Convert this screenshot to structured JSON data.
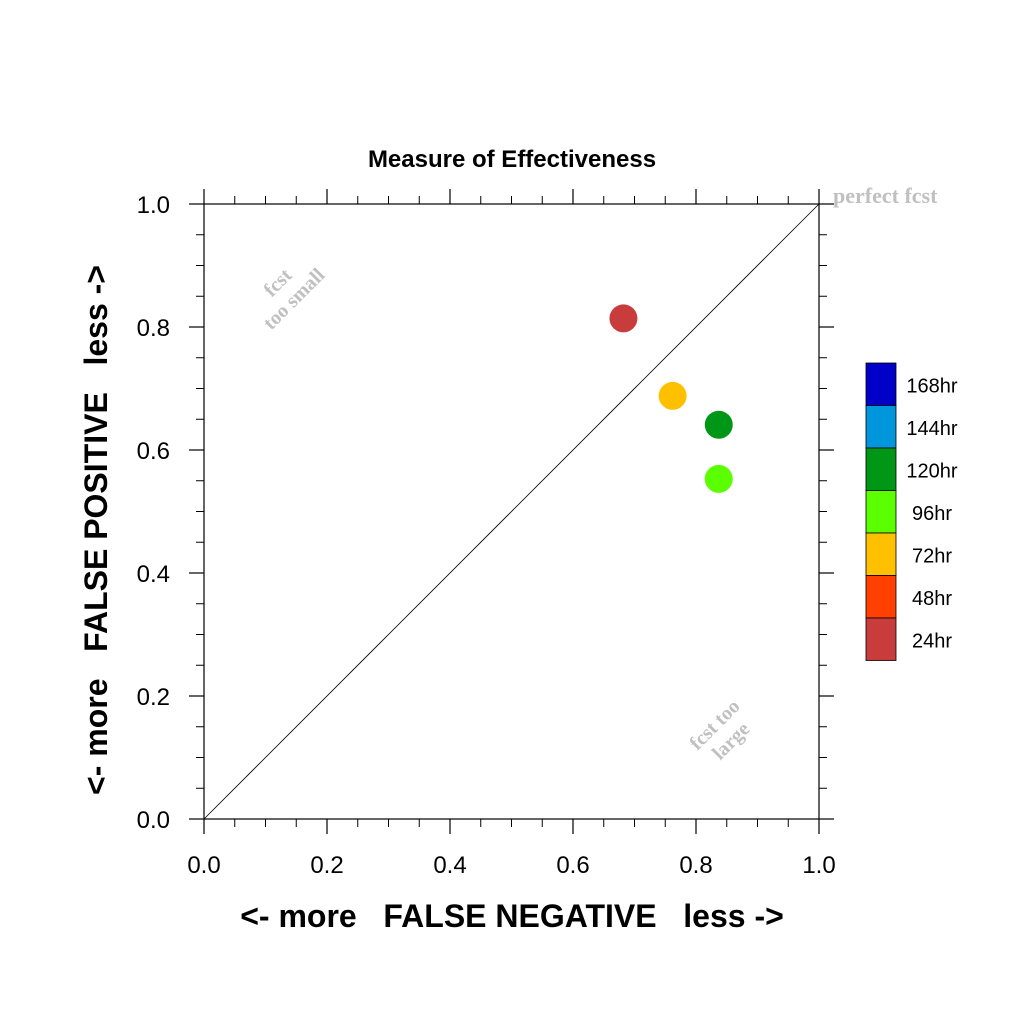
{
  "chart_data": {
    "type": "scatter",
    "title": "Measure of Effectiveness",
    "xlabel": "<- more   FALSE NEGATIVE   less ->",
    "ylabel": "<- more   FALSE POSITIVE   less ->",
    "xlim": [
      0.0,
      1.0
    ],
    "ylim": [
      0.0,
      1.0
    ],
    "x_ticks": [
      "0.0",
      "0.2",
      "0.4",
      "0.6",
      "0.8",
      "1.0"
    ],
    "y_ticks": [
      "0.0",
      "0.2",
      "0.4",
      "0.6",
      "0.8",
      "1.0"
    ],
    "grid": false,
    "reference_line": {
      "from": [
        0.0,
        0.0
      ],
      "to": [
        1.0,
        1.0
      ]
    },
    "annotations": {
      "top_right": "perfect fcst",
      "upper_left_line1": "fcst",
      "upper_left_line2": "too small",
      "lower_right_line1": "fcst too",
      "lower_right_line2": "large"
    },
    "legend_position": "right",
    "legend": [
      {
        "label": "168hr",
        "color": "#0000c8"
      },
      {
        "label": "144hr",
        "color": "#0096dc"
      },
      {
        "label": "120hr",
        "color": "#009616"
      },
      {
        "label": "96hr",
        "color": "#5aff00"
      },
      {
        "label": "72hr",
        "color": "#ffc000"
      },
      {
        "label": "48hr",
        "color": "#ff4000"
      },
      {
        "label": "24hr",
        "color": "#c83c3c"
      }
    ],
    "points": [
      {
        "series": "24hr",
        "x": 0.682,
        "y": 0.814,
        "color": "#c83c3c"
      },
      {
        "series": "72hr",
        "x": 0.762,
        "y": 0.688,
        "color": "#ffc000"
      },
      {
        "series": "120hr",
        "x": 0.837,
        "y": 0.641,
        "color": "#009616"
      },
      {
        "series": "96hr",
        "x": 0.837,
        "y": 0.553,
        "color": "#5aff00"
      }
    ]
  }
}
